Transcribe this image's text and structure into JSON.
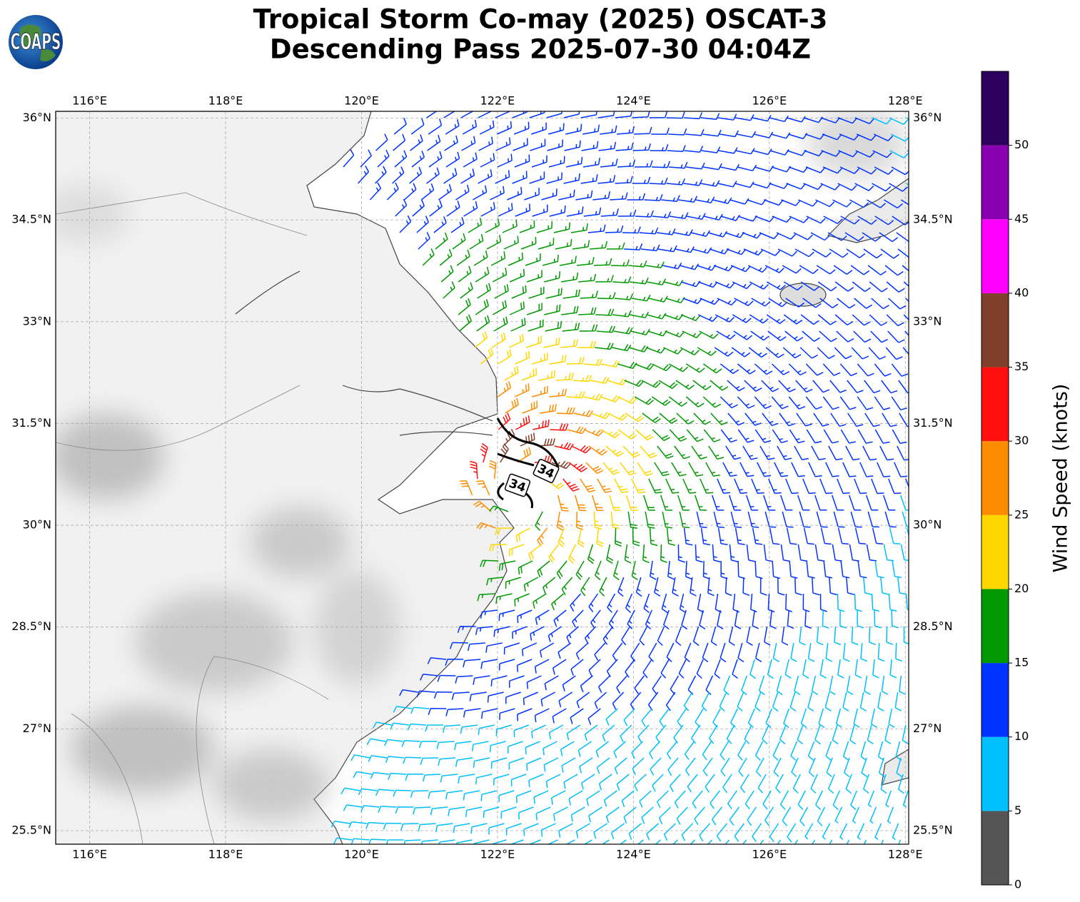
{
  "map": {
    "title": [
      "Tropical Storm Co-may (2025) OSCAT-3",
      "Descending Pass 2025-07-30 04:04Z"
    ],
    "logo": "COAPS",
    "lon_range": [
      115.5,
      128.05
    ],
    "lat_range": [
      25.3,
      36.1
    ],
    "lon_ticks": [
      {
        "value": 116,
        "label": "116°E"
      },
      {
        "value": 118,
        "label": "118°E"
      },
      {
        "value": 120,
        "label": "120°E"
      },
      {
        "value": 122,
        "label": "122°E"
      },
      {
        "value": 124,
        "label": "124°E"
      },
      {
        "value": 126,
        "label": "126°E"
      },
      {
        "value": 128,
        "label": "128°E"
      }
    ],
    "lat_ticks": [
      {
        "value": 36,
        "label": "36°N"
      },
      {
        "value": 34.5,
        "label": "34.5°N"
      },
      {
        "value": 33,
        "label": "33°N"
      },
      {
        "value": 31.5,
        "label": "31.5°N"
      },
      {
        "value": 30,
        "label": "30°N"
      },
      {
        "value": 28.5,
        "label": "28.5°N"
      },
      {
        "value": 27,
        "label": "27°N"
      },
      {
        "value": 25.5,
        "label": "25.5°N"
      }
    ],
    "contour_labels": [
      "34",
      "34"
    ],
    "colorbar": {
      "label": "Wind Speed (knots)",
      "range": [
        0,
        55
      ],
      "ticks": [
        0,
        5,
        10,
        15,
        20,
        25,
        30,
        35,
        40,
        45,
        50
      ],
      "colors": [
        "#555555",
        "#00bfff",
        "#0033ff",
        "#009900",
        "#ffd700",
        "#ff8c00",
        "#ff0f0f",
        "#7f3f2a",
        "#ff00ff",
        "#8800b0",
        "#2e005e"
      ]
    }
  }
}
